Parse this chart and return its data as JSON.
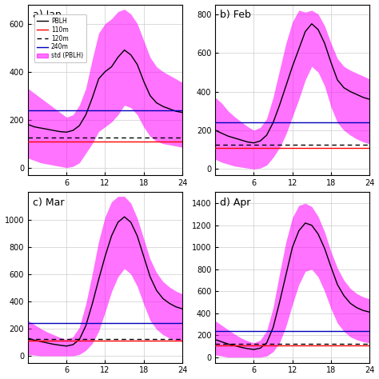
{
  "panels": [
    {
      "label": "a) Jan",
      "ylim": [
        -30,
        680
      ],
      "yticks": [
        0,
        200,
        400,
        600
      ],
      "line_110": 110,
      "line_120": 125,
      "line_240": 240,
      "pblh_mean": [
        180,
        170,
        165,
        160,
        155,
        150,
        148,
        155,
        175,
        220,
        290,
        370,
        400,
        420,
        460,
        490,
        470,
        430,
        360,
        300,
        270,
        255,
        245,
        235,
        230
      ],
      "pblh_upper": [
        330,
        310,
        290,
        270,
        250,
        230,
        210,
        220,
        260,
        330,
        450,
        560,
        600,
        620,
        650,
        660,
        640,
        600,
        530,
        460,
        420,
        400,
        385,
        370,
        355
      ],
      "pblh_lower": [
        40,
        30,
        20,
        15,
        10,
        5,
        0,
        5,
        20,
        60,
        100,
        150,
        170,
        190,
        220,
        260,
        250,
        220,
        170,
        130,
        110,
        100,
        95,
        90,
        85
      ]
    },
    {
      "label": "b) Feb",
      "ylim": [
        -30,
        850
      ],
      "yticks": [
        0,
        200,
        400,
        600,
        800
      ],
      "line_110": 110,
      "line_120": 125,
      "line_240": 240,
      "pblh_mean": [
        200,
        185,
        170,
        160,
        150,
        140,
        135,
        145,
        175,
        240,
        330,
        430,
        530,
        620,
        710,
        750,
        720,
        650,
        550,
        460,
        420,
        400,
        385,
        370,
        360
      ],
      "pblh_upper": [
        370,
        340,
        300,
        270,
        245,
        220,
        200,
        215,
        260,
        370,
        510,
        650,
        760,
        820,
        810,
        820,
        800,
        740,
        650,
        570,
        530,
        510,
        495,
        480,
        465
      ],
      "pblh_lower": [
        50,
        35,
        25,
        15,
        10,
        5,
        0,
        5,
        20,
        60,
        110,
        180,
        270,
        360,
        460,
        530,
        500,
        430,
        320,
        240,
        200,
        175,
        155,
        140,
        130
      ]
    },
    {
      "label": "c) Mar",
      "ylim": [
        -50,
        1200
      ],
      "yticks": [
        0,
        200,
        400,
        600,
        800,
        1000
      ],
      "line_110": 110,
      "line_120": 125,
      "line_240": 240,
      "pblh_mean": [
        130,
        115,
        105,
        95,
        85,
        78,
        72,
        82,
        120,
        220,
        380,
        560,
        730,
        880,
        980,
        1020,
        980,
        880,
        730,
        580,
        480,
        420,
        385,
        360,
        345
      ],
      "pblh_upper": [
        260,
        230,
        200,
        175,
        155,
        135,
        120,
        140,
        210,
        380,
        600,
        840,
        1020,
        1130,
        1170,
        1170,
        1120,
        1010,
        860,
        710,
        610,
        545,
        505,
        475,
        455
      ],
      "pblh_lower": [
        10,
        5,
        0,
        0,
        0,
        0,
        0,
        0,
        10,
        40,
        90,
        180,
        320,
        470,
        580,
        640,
        600,
        510,
        380,
        260,
        195,
        155,
        130,
        115,
        105
      ]
    },
    {
      "label": "d) Apr",
      "ylim": [
        -50,
        1500
      ],
      "yticks": [
        0,
        200,
        400,
        600,
        800,
        1000,
        1200,
        1400
      ],
      "line_110": 110,
      "line_120": 125,
      "line_240": 240,
      "pblh_mean": [
        160,
        140,
        120,
        105,
        90,
        78,
        70,
        82,
        130,
        270,
        500,
        750,
        1000,
        1150,
        1220,
        1200,
        1120,
        990,
        820,
        660,
        560,
        490,
        450,
        425,
        410
      ],
      "pblh_upper": [
        330,
        290,
        250,
        210,
        175,
        148,
        130,
        155,
        240,
        450,
        760,
        1050,
        1270,
        1380,
        1400,
        1370,
        1280,
        1140,
        960,
        810,
        700,
        625,
        578,
        548,
        530
      ],
      "pblh_lower": [
        20,
        10,
        0,
        0,
        0,
        0,
        0,
        0,
        10,
        50,
        130,
        280,
        480,
        660,
        780,
        800,
        730,
        600,
        440,
        310,
        235,
        185,
        158,
        140,
        130
      ]
    }
  ],
  "hours": [
    0,
    1,
    2,
    3,
    4,
    5,
    6,
    7,
    8,
    9,
    10,
    11,
    12,
    13,
    14,
    15,
    16,
    17,
    18,
    19,
    20,
    21,
    22,
    23,
    24
  ],
  "color_pblh": "#000000",
  "color_110": "#ff0000",
  "color_120": "#000000",
  "color_240": "#0000bb",
  "color_std": "#ff00ff",
  "std_alpha": 0.55,
  "lw_main": 1.0,
  "lw_hline": 1.0,
  "xticks": [
    6,
    12,
    18,
    24
  ],
  "show_legend": true,
  "bg_color": "#ffffff",
  "grid_color": "#cccccc"
}
